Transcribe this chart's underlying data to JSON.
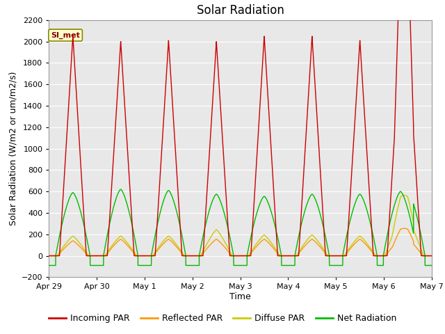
{
  "title": "Solar Radiation",
  "xlabel": "Time",
  "ylabel": "Solar Radiation (W/m2 or um/m2/s)",
  "ylim": [
    -200,
    2200
  ],
  "yticks": [
    -200,
    0,
    200,
    400,
    600,
    800,
    1000,
    1200,
    1400,
    1600,
    1800,
    2000,
    2200
  ],
  "xtick_positions": [
    0,
    1,
    2,
    3,
    4,
    5,
    6,
    7,
    8
  ],
  "xtick_labels": [
    "Apr 29",
    "Apr 30",
    "May 1",
    "May 2",
    "May 3",
    "May 4",
    "May 5",
    "May 6",
    "May 7"
  ],
  "annotation_text": "SI_met",
  "colors": {
    "incoming": "#cc0000",
    "reflected": "#ff9900",
    "diffuse": "#cccc00",
    "net": "#00bb00",
    "background_plot": "#e8e8e8",
    "background_fig": "#ffffff",
    "grid": "#ffffff"
  },
  "legend_labels": [
    "Incoming PAR",
    "Reflected PAR",
    "Diffuse PAR",
    "Net Radiation"
  ],
  "num_days": 9,
  "day_centers": [
    0.5,
    1.5,
    2.5,
    3.5,
    4.5,
    5.5,
    6.5,
    7.5
  ],
  "peaks_incoming": [
    2050,
    2000,
    2010,
    2000,
    2050,
    2050,
    2010,
    2010
  ],
  "peaks_reflected": [
    140,
    155,
    155,
    155,
    155,
    155,
    155,
    155
  ],
  "peaks_diffuse": [
    185,
    185,
    185,
    245,
    195,
    195,
    185,
    340
  ],
  "peaks_net": [
    590,
    620,
    610,
    575,
    555,
    575,
    575,
    600
  ],
  "incoming_hw": 0.28,
  "reflected_hw": 0.32,
  "diffuse_hw": 0.33,
  "net_hw": 0.36,
  "night_net": -90,
  "last_day_cutoff": 7.6,
  "last_day_peak": 2020,
  "title_fontsize": 12,
  "label_fontsize": 9,
  "tick_fontsize": 8,
  "legend_fontsize": 9
}
